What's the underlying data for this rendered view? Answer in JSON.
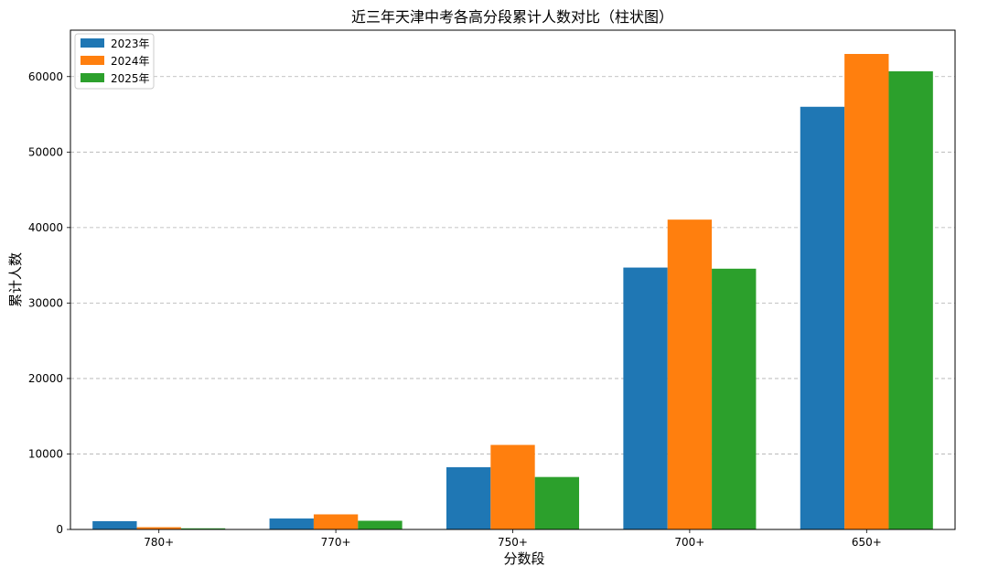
{
  "chart_data": {
    "type": "bar",
    "title": "近三年天津中考各高分段累计人数对比（柱状图）",
    "xlabel": "分数段",
    "ylabel": "累计人数",
    "categories": [
      "780+",
      "770+",
      "750+",
      "700+",
      "650+"
    ],
    "series": [
      {
        "name": "2023年",
        "color": "#1f77b4",
        "values": [
          1100,
          1450,
          8250,
          34700,
          56000
        ]
      },
      {
        "name": "2024年",
        "color": "#ff7f0e",
        "values": [
          300,
          2000,
          11200,
          41050,
          63000
        ]
      },
      {
        "name": "2025年",
        "color": "#2ca02c",
        "values": [
          150,
          1150,
          6950,
          34550,
          60700
        ]
      }
    ],
    "ylim": [
      0,
      66150
    ],
    "yticks": [
      0,
      10000,
      20000,
      30000,
      40000,
      50000,
      60000
    ],
    "grid": "y-dashed",
    "legend_position": "top-left"
  }
}
